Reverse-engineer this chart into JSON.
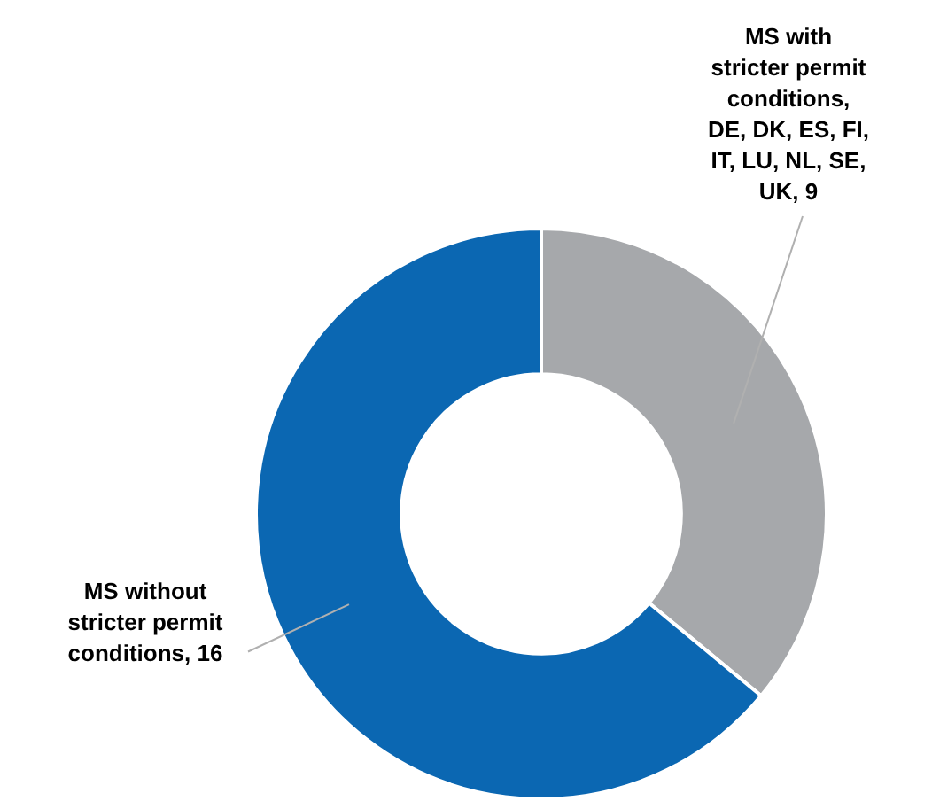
{
  "chart_data": {
    "type": "donut",
    "categories": [
      "MS with stricter permit conditions, DE, DK, ES, FI, IT, LU, NL, SE, UK",
      "MS without stricter permit conditions"
    ],
    "values": [
      9,
      16
    ],
    "colors": [
      "#a6a8ab",
      "#0b67b2"
    ],
    "value_labels": [
      ", 9",
      ", 16"
    ]
  }
}
